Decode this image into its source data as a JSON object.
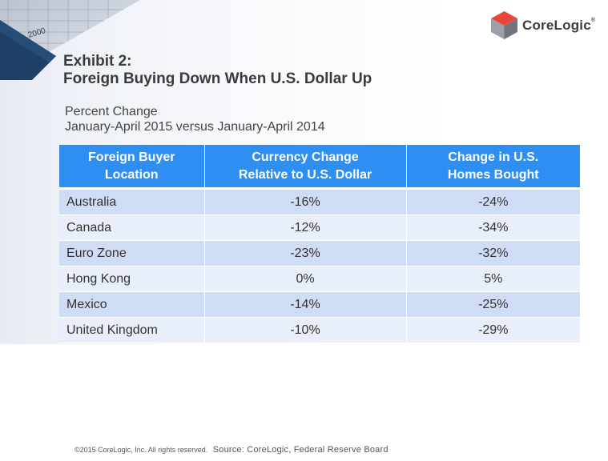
{
  "header": {
    "corner_label": "2000",
    "logo_text": "CoreLogic",
    "logo_mark": "®"
  },
  "title": {
    "line1": "Exhibit 2:",
    "line2": "Foreign Buying Down When U.S. Dollar Up"
  },
  "subtitle": {
    "line1": "Percent Change",
    "line2": "January-April 2015 versus January-April 2014"
  },
  "table": {
    "headers": [
      [
        "Foreign Buyer",
        "Location"
      ],
      [
        "Currency Change",
        "Relative to U.S. Dollar"
      ],
      [
        "Change in U.S.",
        "Homes Bought"
      ]
    ],
    "rows": [
      [
        "Australia",
        "-16%",
        "-24%"
      ],
      [
        "Canada",
        "-12%",
        "-34%"
      ],
      [
        "Euro Zone",
        "-23%",
        "-32%"
      ],
      [
        "Hong Kong",
        "0%",
        "5%"
      ],
      [
        "Mexico",
        "-14%",
        "-25%"
      ],
      [
        "United Kingdom",
        "-10%",
        "-29%"
      ]
    ]
  },
  "footer": {
    "copyright": "©2015 CoreLogic, Inc. All rights reserved.",
    "source": "Source: CoreLogic, Federal Reserve Board"
  },
  "colors": {
    "header_fill": "#2f8ef2",
    "row_dark": "#cfdcf5",
    "row_light": "#e8eefa",
    "logo_red": "#e8453c",
    "corner_navy": "#1e3f66"
  }
}
